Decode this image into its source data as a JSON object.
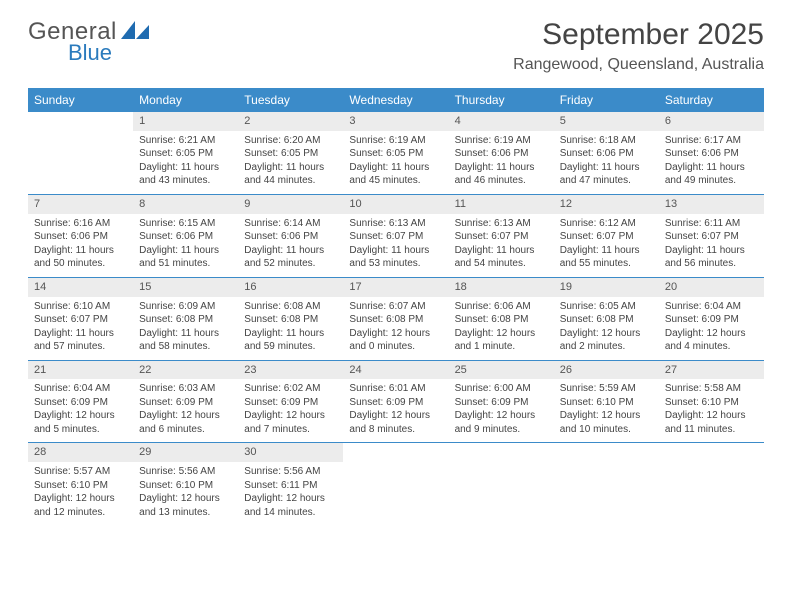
{
  "logo": {
    "text1": "General",
    "text2": "Blue",
    "shape_color": "#1f6bb0"
  },
  "title": "September 2025",
  "location": "Rangewood, Queensland, Australia",
  "colors": {
    "header_bar": "#3b8bc9",
    "header_text": "#ffffff",
    "daynum_bg": "#ececec",
    "week_divider": "#3b8bc9",
    "body_text": "#444444"
  },
  "dow": [
    "Sunday",
    "Monday",
    "Tuesday",
    "Wednesday",
    "Thursday",
    "Friday",
    "Saturday"
  ],
  "weeks": [
    [
      {
        "n": "",
        "sr": "",
        "ss": "",
        "dl": ""
      },
      {
        "n": "1",
        "sr": "Sunrise: 6:21 AM",
        "ss": "Sunset: 6:05 PM",
        "dl": "Daylight: 11 hours and 43 minutes."
      },
      {
        "n": "2",
        "sr": "Sunrise: 6:20 AM",
        "ss": "Sunset: 6:05 PM",
        "dl": "Daylight: 11 hours and 44 minutes."
      },
      {
        "n": "3",
        "sr": "Sunrise: 6:19 AM",
        "ss": "Sunset: 6:05 PM",
        "dl": "Daylight: 11 hours and 45 minutes."
      },
      {
        "n": "4",
        "sr": "Sunrise: 6:19 AM",
        "ss": "Sunset: 6:06 PM",
        "dl": "Daylight: 11 hours and 46 minutes."
      },
      {
        "n": "5",
        "sr": "Sunrise: 6:18 AM",
        "ss": "Sunset: 6:06 PM",
        "dl": "Daylight: 11 hours and 47 minutes."
      },
      {
        "n": "6",
        "sr": "Sunrise: 6:17 AM",
        "ss": "Sunset: 6:06 PM",
        "dl": "Daylight: 11 hours and 49 minutes."
      }
    ],
    [
      {
        "n": "7",
        "sr": "Sunrise: 6:16 AM",
        "ss": "Sunset: 6:06 PM",
        "dl": "Daylight: 11 hours and 50 minutes."
      },
      {
        "n": "8",
        "sr": "Sunrise: 6:15 AM",
        "ss": "Sunset: 6:06 PM",
        "dl": "Daylight: 11 hours and 51 minutes."
      },
      {
        "n": "9",
        "sr": "Sunrise: 6:14 AM",
        "ss": "Sunset: 6:06 PM",
        "dl": "Daylight: 11 hours and 52 minutes."
      },
      {
        "n": "10",
        "sr": "Sunrise: 6:13 AM",
        "ss": "Sunset: 6:07 PM",
        "dl": "Daylight: 11 hours and 53 minutes."
      },
      {
        "n": "11",
        "sr": "Sunrise: 6:13 AM",
        "ss": "Sunset: 6:07 PM",
        "dl": "Daylight: 11 hours and 54 minutes."
      },
      {
        "n": "12",
        "sr": "Sunrise: 6:12 AM",
        "ss": "Sunset: 6:07 PM",
        "dl": "Daylight: 11 hours and 55 minutes."
      },
      {
        "n": "13",
        "sr": "Sunrise: 6:11 AM",
        "ss": "Sunset: 6:07 PM",
        "dl": "Daylight: 11 hours and 56 minutes."
      }
    ],
    [
      {
        "n": "14",
        "sr": "Sunrise: 6:10 AM",
        "ss": "Sunset: 6:07 PM",
        "dl": "Daylight: 11 hours and 57 minutes."
      },
      {
        "n": "15",
        "sr": "Sunrise: 6:09 AM",
        "ss": "Sunset: 6:08 PM",
        "dl": "Daylight: 11 hours and 58 minutes."
      },
      {
        "n": "16",
        "sr": "Sunrise: 6:08 AM",
        "ss": "Sunset: 6:08 PM",
        "dl": "Daylight: 11 hours and 59 minutes."
      },
      {
        "n": "17",
        "sr": "Sunrise: 6:07 AM",
        "ss": "Sunset: 6:08 PM",
        "dl": "Daylight: 12 hours and 0 minutes."
      },
      {
        "n": "18",
        "sr": "Sunrise: 6:06 AM",
        "ss": "Sunset: 6:08 PM",
        "dl": "Daylight: 12 hours and 1 minute."
      },
      {
        "n": "19",
        "sr": "Sunrise: 6:05 AM",
        "ss": "Sunset: 6:08 PM",
        "dl": "Daylight: 12 hours and 2 minutes."
      },
      {
        "n": "20",
        "sr": "Sunrise: 6:04 AM",
        "ss": "Sunset: 6:09 PM",
        "dl": "Daylight: 12 hours and 4 minutes."
      }
    ],
    [
      {
        "n": "21",
        "sr": "Sunrise: 6:04 AM",
        "ss": "Sunset: 6:09 PM",
        "dl": "Daylight: 12 hours and 5 minutes."
      },
      {
        "n": "22",
        "sr": "Sunrise: 6:03 AM",
        "ss": "Sunset: 6:09 PM",
        "dl": "Daylight: 12 hours and 6 minutes."
      },
      {
        "n": "23",
        "sr": "Sunrise: 6:02 AM",
        "ss": "Sunset: 6:09 PM",
        "dl": "Daylight: 12 hours and 7 minutes."
      },
      {
        "n": "24",
        "sr": "Sunrise: 6:01 AM",
        "ss": "Sunset: 6:09 PM",
        "dl": "Daylight: 12 hours and 8 minutes."
      },
      {
        "n": "25",
        "sr": "Sunrise: 6:00 AM",
        "ss": "Sunset: 6:09 PM",
        "dl": "Daylight: 12 hours and 9 minutes."
      },
      {
        "n": "26",
        "sr": "Sunrise: 5:59 AM",
        "ss": "Sunset: 6:10 PM",
        "dl": "Daylight: 12 hours and 10 minutes."
      },
      {
        "n": "27",
        "sr": "Sunrise: 5:58 AM",
        "ss": "Sunset: 6:10 PM",
        "dl": "Daylight: 12 hours and 11 minutes."
      }
    ],
    [
      {
        "n": "28",
        "sr": "Sunrise: 5:57 AM",
        "ss": "Sunset: 6:10 PM",
        "dl": "Daylight: 12 hours and 12 minutes."
      },
      {
        "n": "29",
        "sr": "Sunrise: 5:56 AM",
        "ss": "Sunset: 6:10 PM",
        "dl": "Daylight: 12 hours and 13 minutes."
      },
      {
        "n": "30",
        "sr": "Sunrise: 5:56 AM",
        "ss": "Sunset: 6:11 PM",
        "dl": "Daylight: 12 hours and 14 minutes."
      },
      {
        "n": "",
        "sr": "",
        "ss": "",
        "dl": ""
      },
      {
        "n": "",
        "sr": "",
        "ss": "",
        "dl": ""
      },
      {
        "n": "",
        "sr": "",
        "ss": "",
        "dl": ""
      },
      {
        "n": "",
        "sr": "",
        "ss": "",
        "dl": ""
      }
    ]
  ]
}
